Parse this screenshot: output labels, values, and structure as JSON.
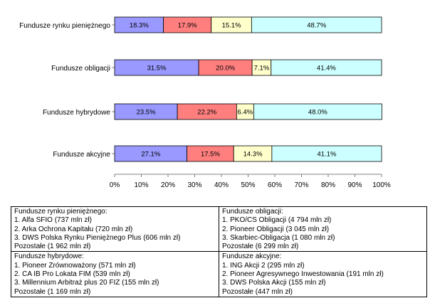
{
  "chart_data": {
    "type": "bar",
    "orientation": "horizontal",
    "stacked": "percent",
    "categories": [
      "Fundusze rynku pieniężnego",
      "Fundusze obligacji",
      "Fundusze hybrydowe",
      "Fundusze akcyjne"
    ],
    "series": [
      {
        "values": [
          18.3,
          31.5,
          23.5,
          27.1
        ],
        "labels": [
          "18.3%",
          "31.5%",
          "23.5%",
          "27.1%"
        ],
        "color": "#9999ff"
      },
      {
        "values": [
          17.9,
          20.0,
          22.2,
          17.5
        ],
        "labels": [
          "17.9%",
          "20.0%",
          "22.2%",
          "17.5%"
        ],
        "color": "#ff7f7f"
      },
      {
        "values": [
          15.1,
          7.1,
          6.4,
          14.3
        ],
        "labels": [
          "15.1%",
          "7.1%",
          "6.4%",
          "14.3%"
        ],
        "color": "#ffffcc"
      },
      {
        "values": [
          48.7,
          41.4,
          48.0,
          41.1
        ],
        "labels": [
          "48.7%",
          "41.4%",
          "48.0%",
          "41.1%"
        ],
        "color": "#ccffff"
      }
    ],
    "xlim": [
      0,
      100
    ],
    "xticks": [
      "0%",
      "10%",
      "20%",
      "30%",
      "40%",
      "50%",
      "60%",
      "70%",
      "80%",
      "90%",
      "100%"
    ],
    "grid": false,
    "legend": "none"
  },
  "table": {
    "cells": [
      {
        "title": "Fundusze rynku pieniężnego:",
        "lines": [
          "1. Alfa SFIO (737 mln zł)",
          "2. Arka Ochrona Kapitału (720 mln zł)",
          "3. DWS Polska Rynku Pieniężnego Plus (606 mln zł)",
          "Pozostałe (1 962 mln zł)"
        ]
      },
      {
        "title": "Fundusze obligacji:",
        "lines": [
          "1. PKO/CS Obligacji (4 794 mln zł)",
          "2. Pioneer Obligacji (3 045 mln zł)",
          "3. Skarbiec-Obligacja (1 080 mln zł)",
          "Pozostałe (6 299 mln zł)"
        ]
      },
      {
        "title": "Fundusze hybrydowe:",
        "lines": [
          "1. Pioneer Zrównoważony (571 mln zł)",
          "2. CA IB Pro Lokata FIM (539 mln zł)",
          "3. Millennium Arbitraż plus 20 FIZ (155 mln zł)",
          "Pozostałe (1 169 mln zł)"
        ]
      },
      {
        "title": "Fundusze akcyjne:",
        "lines": [
          "1. ING Akcji 2 (295 mln zł)",
          "2. Pioneer Agresywnego Inwestowania (191 mln zł)",
          "3. DWS Polska Akcji (155 mln zł)",
          "Pozostałe (447 mln zł)"
        ]
      }
    ]
  }
}
